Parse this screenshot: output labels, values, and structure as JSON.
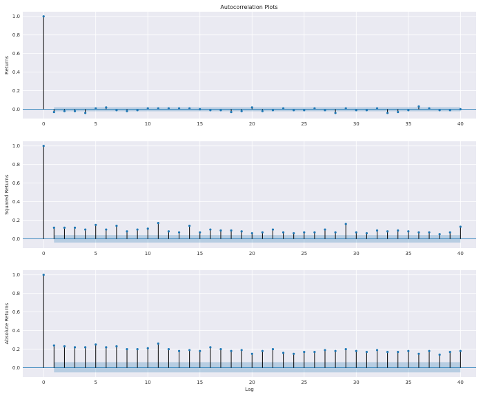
{
  "figure": {
    "title": "Autocorrelation Plots"
  },
  "chart_data": [
    {
      "type": "stem",
      "title": "",
      "ylabel": "Returns",
      "xlabel": "",
      "xlim": [
        -2,
        41.5
      ],
      "ylim": [
        -0.1,
        1.05
      ],
      "xticks": [
        0,
        5,
        10,
        15,
        20,
        25,
        30,
        35,
        40
      ],
      "yticks": [
        0.0,
        0.2,
        0.4,
        0.6,
        0.8,
        1.0
      ],
      "ytick_labels": [
        "0.0",
        "0.2",
        "0.4",
        "0.6",
        "0.8",
        "1.0"
      ],
      "grid": true,
      "lags": [
        0,
        1,
        2,
        3,
        4,
        5,
        6,
        7,
        8,
        9,
        10,
        11,
        12,
        13,
        14,
        15,
        16,
        17,
        18,
        19,
        20,
        21,
        22,
        23,
        24,
        25,
        26,
        27,
        28,
        29,
        30,
        31,
        32,
        33,
        34,
        35,
        36,
        37,
        38,
        39,
        40
      ],
      "values": [
        1.0,
        -0.03,
        -0.02,
        -0.02,
        -0.04,
        0.01,
        0.02,
        -0.01,
        -0.02,
        -0.01,
        0.01,
        0.01,
        0.01,
        0.01,
        0.01,
        0.0,
        -0.01,
        -0.01,
        -0.03,
        -0.02,
        0.02,
        -0.02,
        -0.01,
        0.01,
        -0.01,
        -0.01,
        0.01,
        -0.01,
        -0.04,
        0.01,
        -0.01,
        -0.01,
        0.01,
        -0.04,
        -0.03,
        -0.01,
        0.03,
        0.01,
        -0.01,
        -0.01,
        0.0
      ],
      "confidence_band": {
        "lower": -0.022,
        "upper": 0.022,
        "from_lag": 1,
        "to_lag": 40
      }
    },
    {
      "type": "stem",
      "title": "",
      "ylabel": "Squared Returns",
      "xlabel": "",
      "xlim": [
        -2,
        41.5
      ],
      "ylim": [
        -0.1,
        1.05
      ],
      "xticks": [
        0,
        5,
        10,
        15,
        20,
        25,
        30,
        35,
        40
      ],
      "yticks": [
        0.0,
        0.2,
        0.4,
        0.6,
        0.8,
        1.0
      ],
      "ytick_labels": [
        "0.0",
        "0.2",
        "0.4",
        "0.6",
        "0.8",
        "1.0"
      ],
      "grid": true,
      "lags": [
        0,
        1,
        2,
        3,
        4,
        5,
        6,
        7,
        8,
        9,
        10,
        11,
        12,
        13,
        14,
        15,
        16,
        17,
        18,
        19,
        20,
        21,
        22,
        23,
        24,
        25,
        26,
        27,
        28,
        29,
        30,
        31,
        32,
        33,
        34,
        35,
        36,
        37,
        38,
        39,
        40
      ],
      "values": [
        1.0,
        0.12,
        0.12,
        0.12,
        0.1,
        0.15,
        0.1,
        0.14,
        0.08,
        0.1,
        0.11,
        0.17,
        0.08,
        0.07,
        0.14,
        0.07,
        0.1,
        0.09,
        0.09,
        0.08,
        0.06,
        0.07,
        0.1,
        0.07,
        0.06,
        0.07,
        0.07,
        0.1,
        0.07,
        0.16,
        0.07,
        0.06,
        0.09,
        0.08,
        0.09,
        0.08,
        0.07,
        0.07,
        0.05,
        0.07,
        0.13
      ],
      "confidence_band": {
        "lower": -0.04,
        "upper": 0.04,
        "from_lag": 1,
        "to_lag": 40
      }
    },
    {
      "type": "stem",
      "title": "",
      "ylabel": "Absolute Returns",
      "xlabel": "Lag",
      "xlim": [
        -2,
        41.5
      ],
      "ylim": [
        -0.1,
        1.05
      ],
      "xticks": [
        0,
        5,
        10,
        15,
        20,
        25,
        30,
        35,
        40
      ],
      "yticks": [
        0.0,
        0.2,
        0.4,
        0.6,
        0.8,
        1.0
      ],
      "ytick_labels": [
        "0.0",
        "0.2",
        "0.4",
        "0.6",
        "0.8",
        "1.0"
      ],
      "grid": true,
      "lags": [
        0,
        1,
        2,
        3,
        4,
        5,
        6,
        7,
        8,
        9,
        10,
        11,
        12,
        13,
        14,
        15,
        16,
        17,
        18,
        19,
        20,
        21,
        22,
        23,
        24,
        25,
        26,
        27,
        28,
        29,
        30,
        31,
        32,
        33,
        34,
        35,
        36,
        37,
        38,
        39,
        40
      ],
      "values": [
        1.0,
        0.24,
        0.23,
        0.22,
        0.22,
        0.25,
        0.22,
        0.23,
        0.2,
        0.2,
        0.21,
        0.26,
        0.2,
        0.18,
        0.19,
        0.18,
        0.22,
        0.2,
        0.18,
        0.19,
        0.15,
        0.18,
        0.2,
        0.16,
        0.15,
        0.17,
        0.17,
        0.19,
        0.18,
        0.2,
        0.18,
        0.17,
        0.19,
        0.17,
        0.17,
        0.18,
        0.15,
        0.18,
        0.14,
        0.17,
        0.18
      ],
      "confidence_band": {
        "lower": -0.05,
        "upper": 0.06,
        "from_lag": 1,
        "to_lag": 40
      }
    }
  ],
  "colors": {
    "axes_bg": "#eaeaf2",
    "grid": "#ffffff",
    "stem": "#000000",
    "marker": "#1f77b4",
    "zero_line": "#1f77b4",
    "band": "#1f77b4"
  }
}
